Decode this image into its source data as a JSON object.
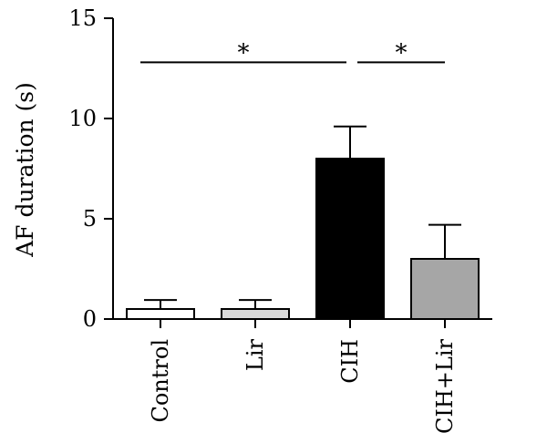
{
  "chart_data": {
    "type": "bar",
    "title": "",
    "xlabel": "",
    "ylabel": "AF duration (s)",
    "ylim": [
      0,
      15
    ],
    "yticks": [
      0,
      5,
      10,
      15
    ],
    "grid": false,
    "error_bars": "upper only",
    "categories": [
      "Control",
      "Lir",
      "CIH",
      "CIH+Lir"
    ],
    "values": [
      0.5,
      0.5,
      8.0,
      3.0
    ],
    "errors": [
      0.45,
      0.45,
      1.6,
      1.7
    ],
    "bar_colors": [
      "#ffffff",
      "#d9d9d9",
      "#000000",
      "#a6a6a6"
    ],
    "significance": [
      {
        "from": "Control",
        "to": "CIH",
        "label": "*",
        "y": 12.8
      },
      {
        "from": "CIH",
        "to": "CIH+Lir",
        "label": "*",
        "y": 12.8
      }
    ]
  }
}
